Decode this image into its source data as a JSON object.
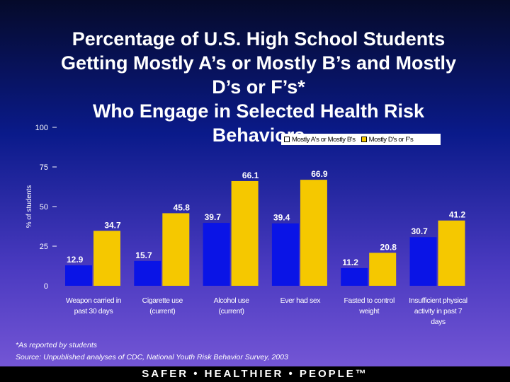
{
  "title_lines": [
    "Percentage of U.S. High School Students",
    "Getting Mostly A’s or Mostly B’s and Mostly",
    "D’s or F’s*",
    "Who Engage in Selected Health Risk",
    "Behaviors"
  ],
  "legend": {
    "series_a": "Mostly A's or Mostly B's",
    "series_b": "Mostly D's or F's"
  },
  "colors": {
    "series_a": "#0a14e6",
    "series_b": "#f5c800"
  },
  "footnote": "*As reported by students",
  "source": "Source:  Unpublished analyses of CDC, National Youth Risk Behavior Survey, 2003",
  "footer": "SAFER • HEALTHIER • PEOPLE™",
  "chart_data": {
    "type": "bar",
    "ylabel": "% of students",
    "ylim": [
      0,
      100
    ],
    "yticks": [
      0,
      25,
      50,
      75,
      100
    ],
    "categories": [
      [
        "Weapon carried in",
        "past 30 days"
      ],
      [
        "Cigarette use",
        "(current)"
      ],
      [
        "Alcohol use",
        "(current)"
      ],
      [
        "Ever had sex"
      ],
      [
        "Fasted to control",
        "weight"
      ],
      [
        "Insufficient physical",
        "activity in past 7",
        "days"
      ]
    ],
    "series": [
      {
        "name": "Mostly A's or Mostly B's",
        "values": [
          12.9,
          15.7,
          39.7,
          39.4,
          11.2,
          30.7
        ]
      },
      {
        "name": "Mostly D's or F's",
        "values": [
          34.7,
          45.8,
          66.1,
          66.9,
          20.8,
          41.2
        ]
      }
    ]
  }
}
